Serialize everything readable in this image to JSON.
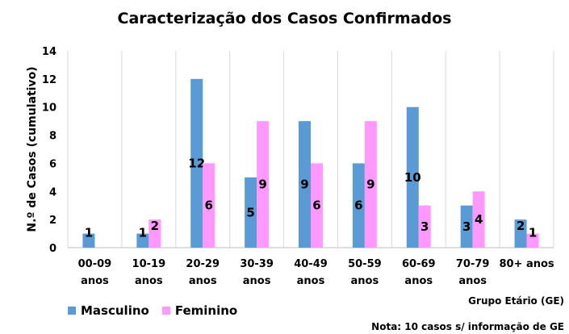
{
  "chart_data": {
    "type": "bar",
    "title": "Caracterização dos Casos Confirmados",
    "ylabel": "N.º de Casos (cumulativo)",
    "xlabel": "Grupo Etário (GE)",
    "note": "Nota: 10 casos s/ informação de GE",
    "ylim": [
      0,
      14
    ],
    "yticks": [
      0,
      2,
      4,
      6,
      8,
      10,
      12,
      14
    ],
    "grid": "vertical",
    "legend_position": "bottom-left",
    "categories": [
      [
        "00-09",
        "anos"
      ],
      [
        "10-19",
        "anos"
      ],
      [
        "20-29",
        "anos"
      ],
      [
        "30-39",
        "anos"
      ],
      [
        "40-49",
        "anos"
      ],
      [
        "50-59",
        "anos"
      ],
      [
        "60-69",
        "anos"
      ],
      [
        "70-79",
        "anos"
      ],
      [
        "80+ anos"
      ]
    ],
    "series": [
      {
        "name": "Masculino",
        "color": "#5b9bd5",
        "values": [
          1,
          1,
          12,
          5,
          9,
          6,
          10,
          3,
          2
        ]
      },
      {
        "name": "Feminino",
        "color": "#ff99ff",
        "values": [
          null,
          2,
          6,
          9,
          6,
          9,
          3,
          4,
          1
        ]
      }
    ]
  }
}
